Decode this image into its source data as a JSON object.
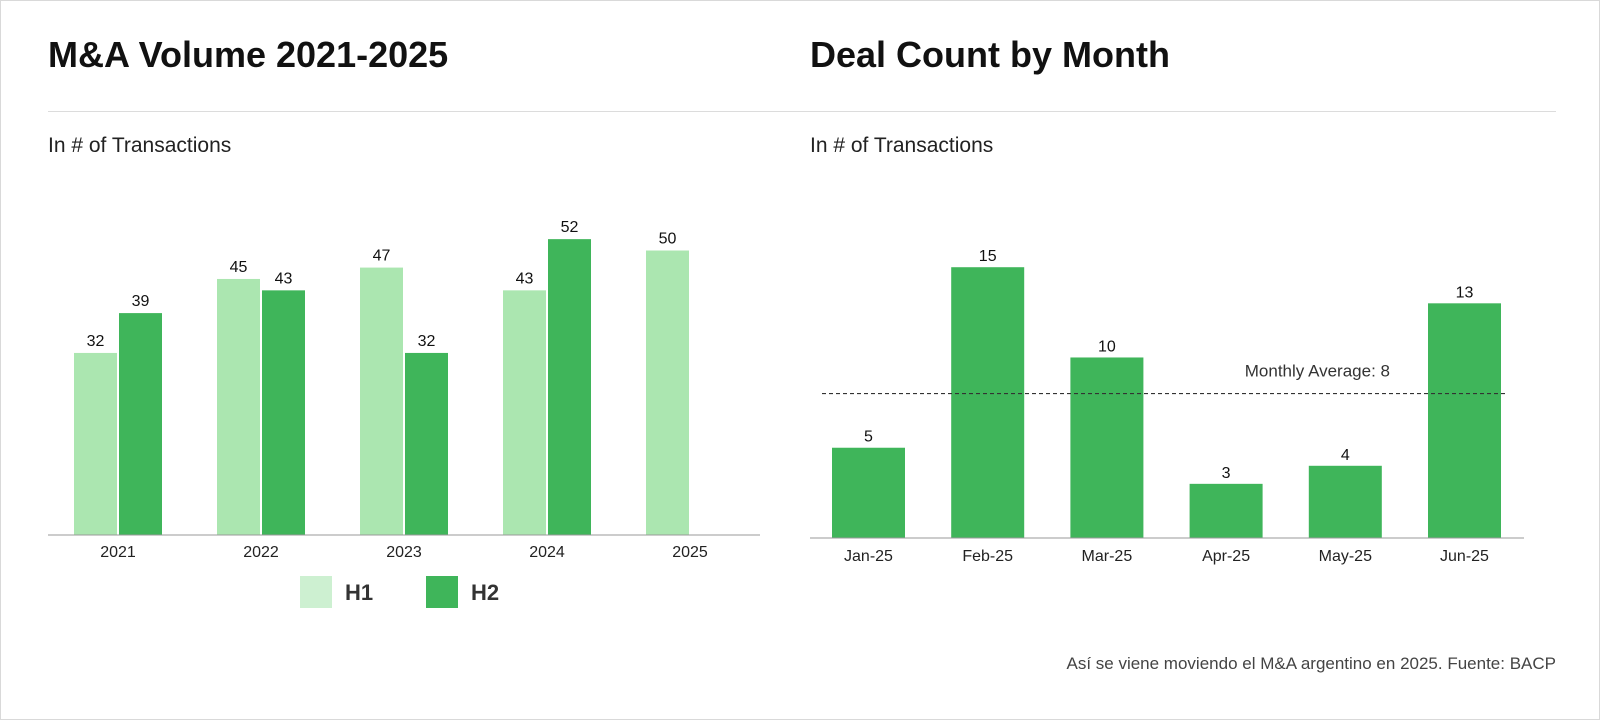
{
  "colors": {
    "h1": "#abe6b0",
    "h2": "#3fb55a",
    "monthly": "#3fb55a",
    "legend_h1": "#cdf0d1"
  },
  "left": {
    "title": "M&A Volume 2021-2025",
    "subtitle": "In # of Transactions",
    "chart_data": {
      "type": "bar",
      "categories": [
        "2021",
        "2022",
        "2023",
        "2024",
        "2025"
      ],
      "series": [
        {
          "name": "H1",
          "values": [
            32,
            45,
            47,
            43,
            50
          ]
        },
        {
          "name": "H2",
          "values": [
            39,
            43,
            32,
            52,
            null
          ]
        }
      ],
      "ylim": [
        0,
        58
      ],
      "legend_position": "bottom-center",
      "grid": false
    }
  },
  "right": {
    "title": "Deal Count by Month",
    "subtitle": "In # of Transactions",
    "chart_data": {
      "type": "bar",
      "categories": [
        "Jan-25",
        "Feb-25",
        "Mar-25",
        "Apr-25",
        "May-25",
        "Jun-25"
      ],
      "values": [
        5,
        15,
        10,
        3,
        4,
        13
      ],
      "ylim": [
        0,
        19
      ],
      "reference_line": {
        "value": 8,
        "label": "Monthly Average: 8",
        "style": "dashed"
      },
      "grid": false
    }
  },
  "footer": "Así se viene moviendo el M&A argentino en 2025. Fuente: BACP"
}
